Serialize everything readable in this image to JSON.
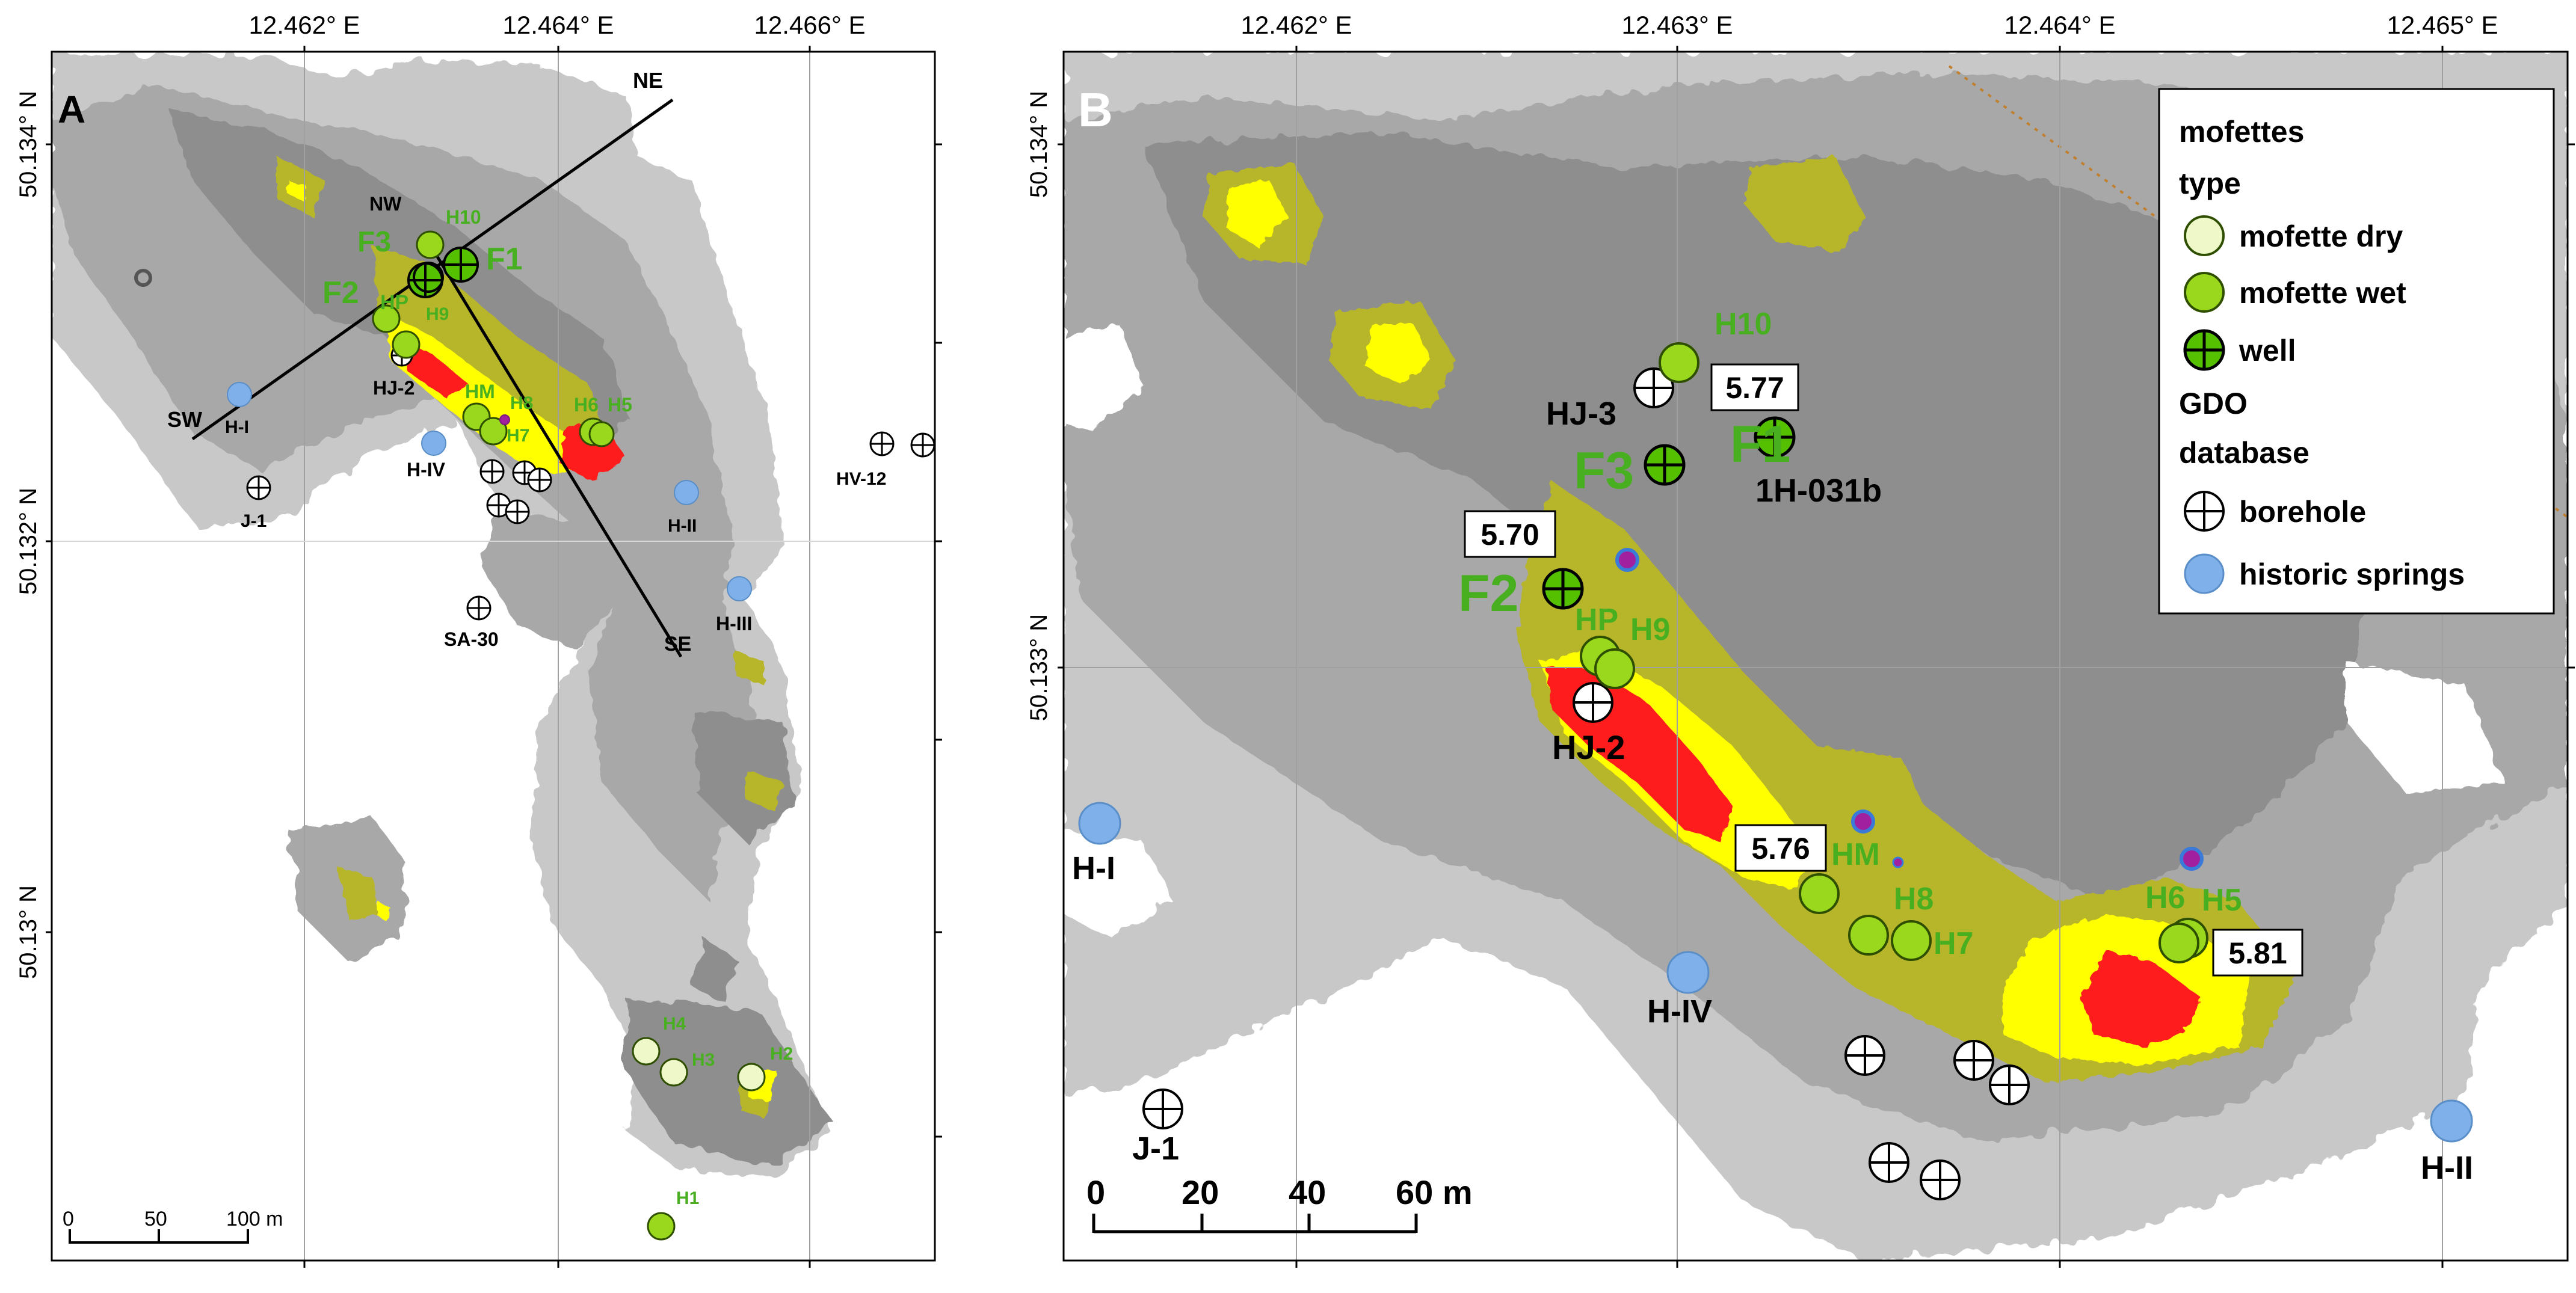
{
  "panel_a": {
    "panel_label": "A",
    "lon_ticks": [
      "12.462° E",
      "12.464° E",
      "12.466° E"
    ],
    "lat_ticks": [
      "50.134° N",
      "50.132° N",
      "50.13° N"
    ],
    "profile_labels": {
      "ne": "NE",
      "sw": "SW",
      "nw": "NW",
      "se": "SE"
    },
    "mofettes": {
      "F1": "F1",
      "F2": "F2",
      "F3": "F3",
      "H10": "H10",
      "HP": "HP",
      "H9": "H9",
      "HM": "HM",
      "H8": "H8",
      "H7": "H7",
      "H6": "H6",
      "H5": "H5",
      "H4": "H4",
      "H3": "H3",
      "H2": "H2",
      "H1": "H1"
    },
    "boreholes": {
      "HJ2": "HJ-2",
      "J1": "J-1",
      "SA30": "SA-30",
      "HV12": "HV-12"
    },
    "springs": {
      "HI": "H-I",
      "HIV": "H-IV",
      "HII": "H-II",
      "HIII": "H-III"
    },
    "scalebar": {
      "t0": "0",
      "t1": "50",
      "t2": "100 m"
    }
  },
  "panel_b": {
    "panel_label": "B",
    "lon_ticks": [
      "12.462° E",
      "12.463° E",
      "12.464° E",
      "12.465° E"
    ],
    "lat_ticks": [
      "50.134° N",
      "50.133° N"
    ],
    "values": {
      "v577": "5.77",
      "v570": "5.70",
      "v576": "5.76",
      "v581": "5.81"
    },
    "mofettes": {
      "H10": "H10",
      "F1": "F1",
      "F2": "F2",
      "F3": "F3",
      "HP": "HP",
      "H9": "H9",
      "HM": "HM",
      "H8": "H8",
      "H7": "H7",
      "H6": "H6",
      "H5": "H5"
    },
    "boreholes": {
      "HJ3": "HJ-3",
      "H031b": "1H-031b",
      "HJ2": "HJ-2",
      "J1": "J-1"
    },
    "springs": {
      "HI": "H-I",
      "HIV": "H-IV",
      "HII": "H-II"
    },
    "scalebar": {
      "t0": "0",
      "t1": "20",
      "t2": "40",
      "t3": "60 m"
    }
  },
  "legend": {
    "title": "mofettes",
    "subtitle": "type",
    "items": [
      "mofette dry",
      "mofette wet",
      "well"
    ],
    "group": "GDO",
    "subgroup": "database",
    "items2": [
      "borehole",
      "historic springs"
    ]
  },
  "colors": {
    "gray_light": "#c8c8c8",
    "gray_mid": "#a8a8a8",
    "gray_dark": "#8e8e8e",
    "olive": "#b7b52c",
    "yellow": "#ffff00",
    "red": "#ff1a1a",
    "mofette_dry": "#eef8c8",
    "mofette_wet": "#99d81c",
    "well": "#55c000",
    "spring": "#7fb0ea",
    "label_green": "#48b020"
  }
}
